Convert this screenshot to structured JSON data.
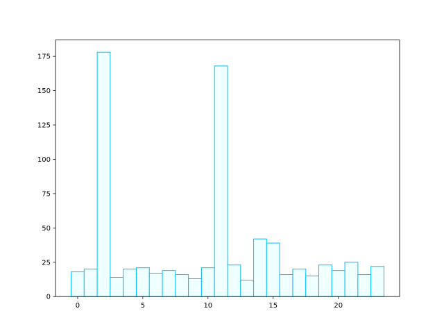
{
  "chart_data": {
    "type": "bar",
    "categories": [
      0,
      1,
      2,
      3,
      4,
      5,
      6,
      7,
      8,
      9,
      10,
      11,
      12,
      13,
      14,
      15,
      16,
      17,
      18,
      19,
      20,
      21,
      22,
      23
    ],
    "values": [
      18,
      20,
      178,
      14,
      20,
      21,
      17,
      19,
      16,
      13,
      21,
      168,
      23,
      12,
      42,
      39,
      16,
      20,
      15,
      23,
      19,
      25,
      16,
      22
    ],
    "title": "",
    "xlabel": "",
    "ylabel": "",
    "xlim": [
      -1.7,
      24.7
    ],
    "ylim": [
      0,
      186.9
    ],
    "xticks": [
      0,
      5,
      10,
      15,
      20
    ],
    "yticks": [
      0,
      25,
      50,
      75,
      100,
      125,
      150,
      175
    ],
    "grid": false,
    "colors": {
      "fill": "#F0FFFF",
      "edge": "#00BFFF"
    }
  }
}
